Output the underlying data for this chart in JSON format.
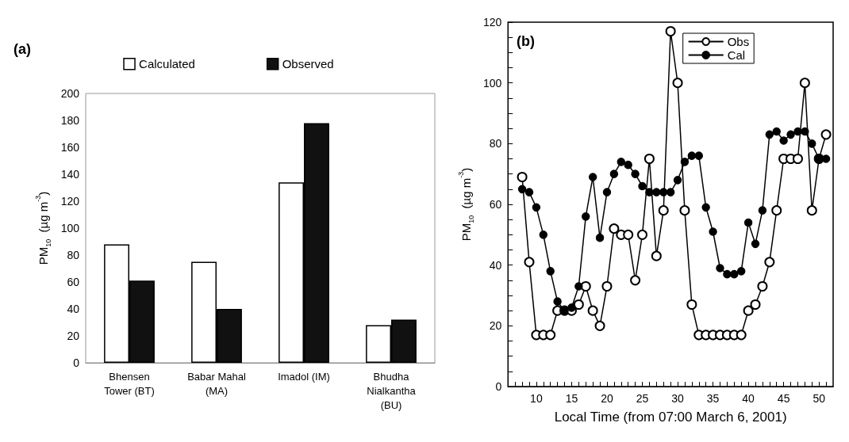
{
  "chart_data": [
    {
      "type": "bar",
      "title": "(a)",
      "ylabel": "PM$_{10}$  (µg m$^{-3}$)",
      "categories": [
        "Bhensen\nTower (BT)",
        "Babar Mahal\n(MA)",
        "Imadol (IM)",
        "Bhudha\nNialkantha\n(BU)"
      ],
      "series": [
        {
          "name": "Calculated",
          "color": "#ffffff",
          "values": [
            88,
            75,
            134,
            28
          ]
        },
        {
          "name": "Observed",
          "color": "#111111",
          "values": [
            61,
            40,
            178,
            32
          ]
        }
      ],
      "ylim": [
        0,
        200
      ],
      "yticks": [
        0,
        20,
        40,
        60,
        80,
        100,
        120,
        140,
        160,
        180,
        200
      ],
      "grid": false,
      "legend": "top"
    },
    {
      "type": "line",
      "title": "(b)",
      "xlabel": "Local Time (from 07:00 March 6, 2001)",
      "ylabel": "PM$_{10}$  (µg m$^{-3}$)",
      "series": [
        {
          "name": "Obs",
          "color": "#000000",
          "x": [
            8,
            9,
            10,
            11,
            12,
            13,
            14,
            15,
            16,
            17,
            18,
            19,
            20,
            21,
            22,
            23,
            24,
            25,
            26,
            27,
            28,
            29,
            30,
            31,
            32,
            33,
            34,
            35,
            36,
            37,
            38,
            39,
            40,
            41,
            42,
            43,
            44,
            45,
            46,
            47,
            48,
            49,
            50,
            51
          ],
          "values": [
            69,
            41,
            17,
            17,
            17,
            25,
            25,
            25,
            27,
            33,
            25,
            20,
            33,
            52,
            50,
            50,
            35,
            50,
            75,
            43,
            58,
            117,
            100,
            58,
            27,
            17,
            17,
            17,
            17,
            17,
            17,
            17,
            25,
            27,
            33,
            41,
            58,
            75,
            75,
            75,
            100,
            58,
            75,
            83
          ]
        },
        {
          "name": "Cal",
          "color": "#000000",
          "x": [
            8,
            9,
            10,
            11,
            12,
            13,
            14,
            15,
            16,
            17,
            18,
            19,
            20,
            21,
            22,
            23,
            24,
            25,
            26,
            27,
            28,
            29,
            30,
            31,
            32,
            33,
            34,
            35,
            36,
            37,
            38,
            39,
            40,
            41,
            42,
            43,
            44,
            45,
            46,
            47,
            48,
            49,
            50,
            51
          ],
          "values": [
            65,
            64,
            59,
            50,
            38,
            28,
            25,
            26,
            33,
            56,
            69,
            49,
            64,
            70,
            74,
            73,
            70,
            66,
            64,
            64,
            64,
            64,
            68,
            74,
            76,
            76,
            59,
            51,
            39,
            37,
            37,
            38,
            54,
            47,
            58,
            83,
            84,
            81,
            83,
            84,
            84,
            80,
            75,
            75
          ]
        }
      ],
      "xlim": [
        6,
        52
      ],
      "xticks": [
        {
          "value": 7,
          "label": null
        },
        {
          "value": 8,
          "label": null
        },
        {
          "value": 9,
          "label": null
        },
        10,
        {
          "value": 11,
          "label": null
        },
        {
          "value": 12,
          "label": null
        },
        {
          "value": 13,
          "label": null
        },
        {
          "value": 14,
          "label": null
        },
        15,
        {
          "value": 16,
          "label": null
        },
        {
          "value": 17,
          "label": null
        },
        {
          "value": 18,
          "label": null
        },
        {
          "value": 19,
          "label": null
        },
        20,
        {
          "value": 21,
          "label": null
        },
        {
          "value": 22,
          "label": null
        },
        {
          "value": 23,
          "label": null
        },
        {
          "value": 24,
          "label": null
        },
        25,
        {
          "value": 26,
          "label": null
        },
        {
          "value": 27,
          "label": null
        },
        {
          "value": 28,
          "label": null
        },
        {
          "value": 29,
          "label": null
        },
        30,
        {
          "value": 31,
          "label": null
        },
        {
          "value": 32,
          "label": null
        },
        {
          "value": 33,
          "label": null
        },
        {
          "value": 34,
          "label": null
        },
        35,
        {
          "value": 36,
          "label": null
        },
        {
          "value": 37,
          "label": null
        },
        {
          "value": 38,
          "label": null
        },
        {
          "value": 39,
          "label": null
        },
        40,
        {
          "value": 41,
          "label": null
        },
        {
          "value": 42,
          "label": null
        },
        {
          "value": 43,
          "label": null
        },
        {
          "value": 44,
          "label": null
        },
        45,
        {
          "value": 46,
          "label": null
        },
        {
          "value": 47,
          "label": null
        },
        {
          "value": 48,
          "label": null
        },
        {
          "value": 49,
          "label": null
        },
        50,
        {
          "value": 51,
          "label": null
        }
      ],
      "ylim": [
        0,
        120
      ],
      "yticks": [
        0,
        {
          "value": 5,
          "label": null
        },
        {
          "value": 10,
          "label": null
        },
        {
          "value": 15,
          "label": null
        },
        20,
        {
          "value": 25,
          "label": null
        },
        {
          "value": 30,
          "label": null
        },
        {
          "value": 35,
          "label": null
        },
        40,
        {
          "value": 45,
          "label": null
        },
        {
          "value": 50,
          "label": null
        },
        {
          "value": 55,
          "label": null
        },
        60,
        {
          "value": 65,
          "label": null
        },
        {
          "value": 70,
          "label": null
        },
        {
          "value": 75,
          "label": null
        },
        80,
        {
          "value": 85,
          "label": null
        },
        {
          "value": 90,
          "label": null
        },
        {
          "value": 95,
          "label": null
        },
        100,
        {
          "value": 105,
          "label": null
        },
        {
          "value": 110,
          "label": null
        },
        {
          "value": 115,
          "label": null
        },
        120
      ],
      "grid": false,
      "legend": "top right",
      "marker": "circle",
      "line_style": "solid"
    }
  ]
}
